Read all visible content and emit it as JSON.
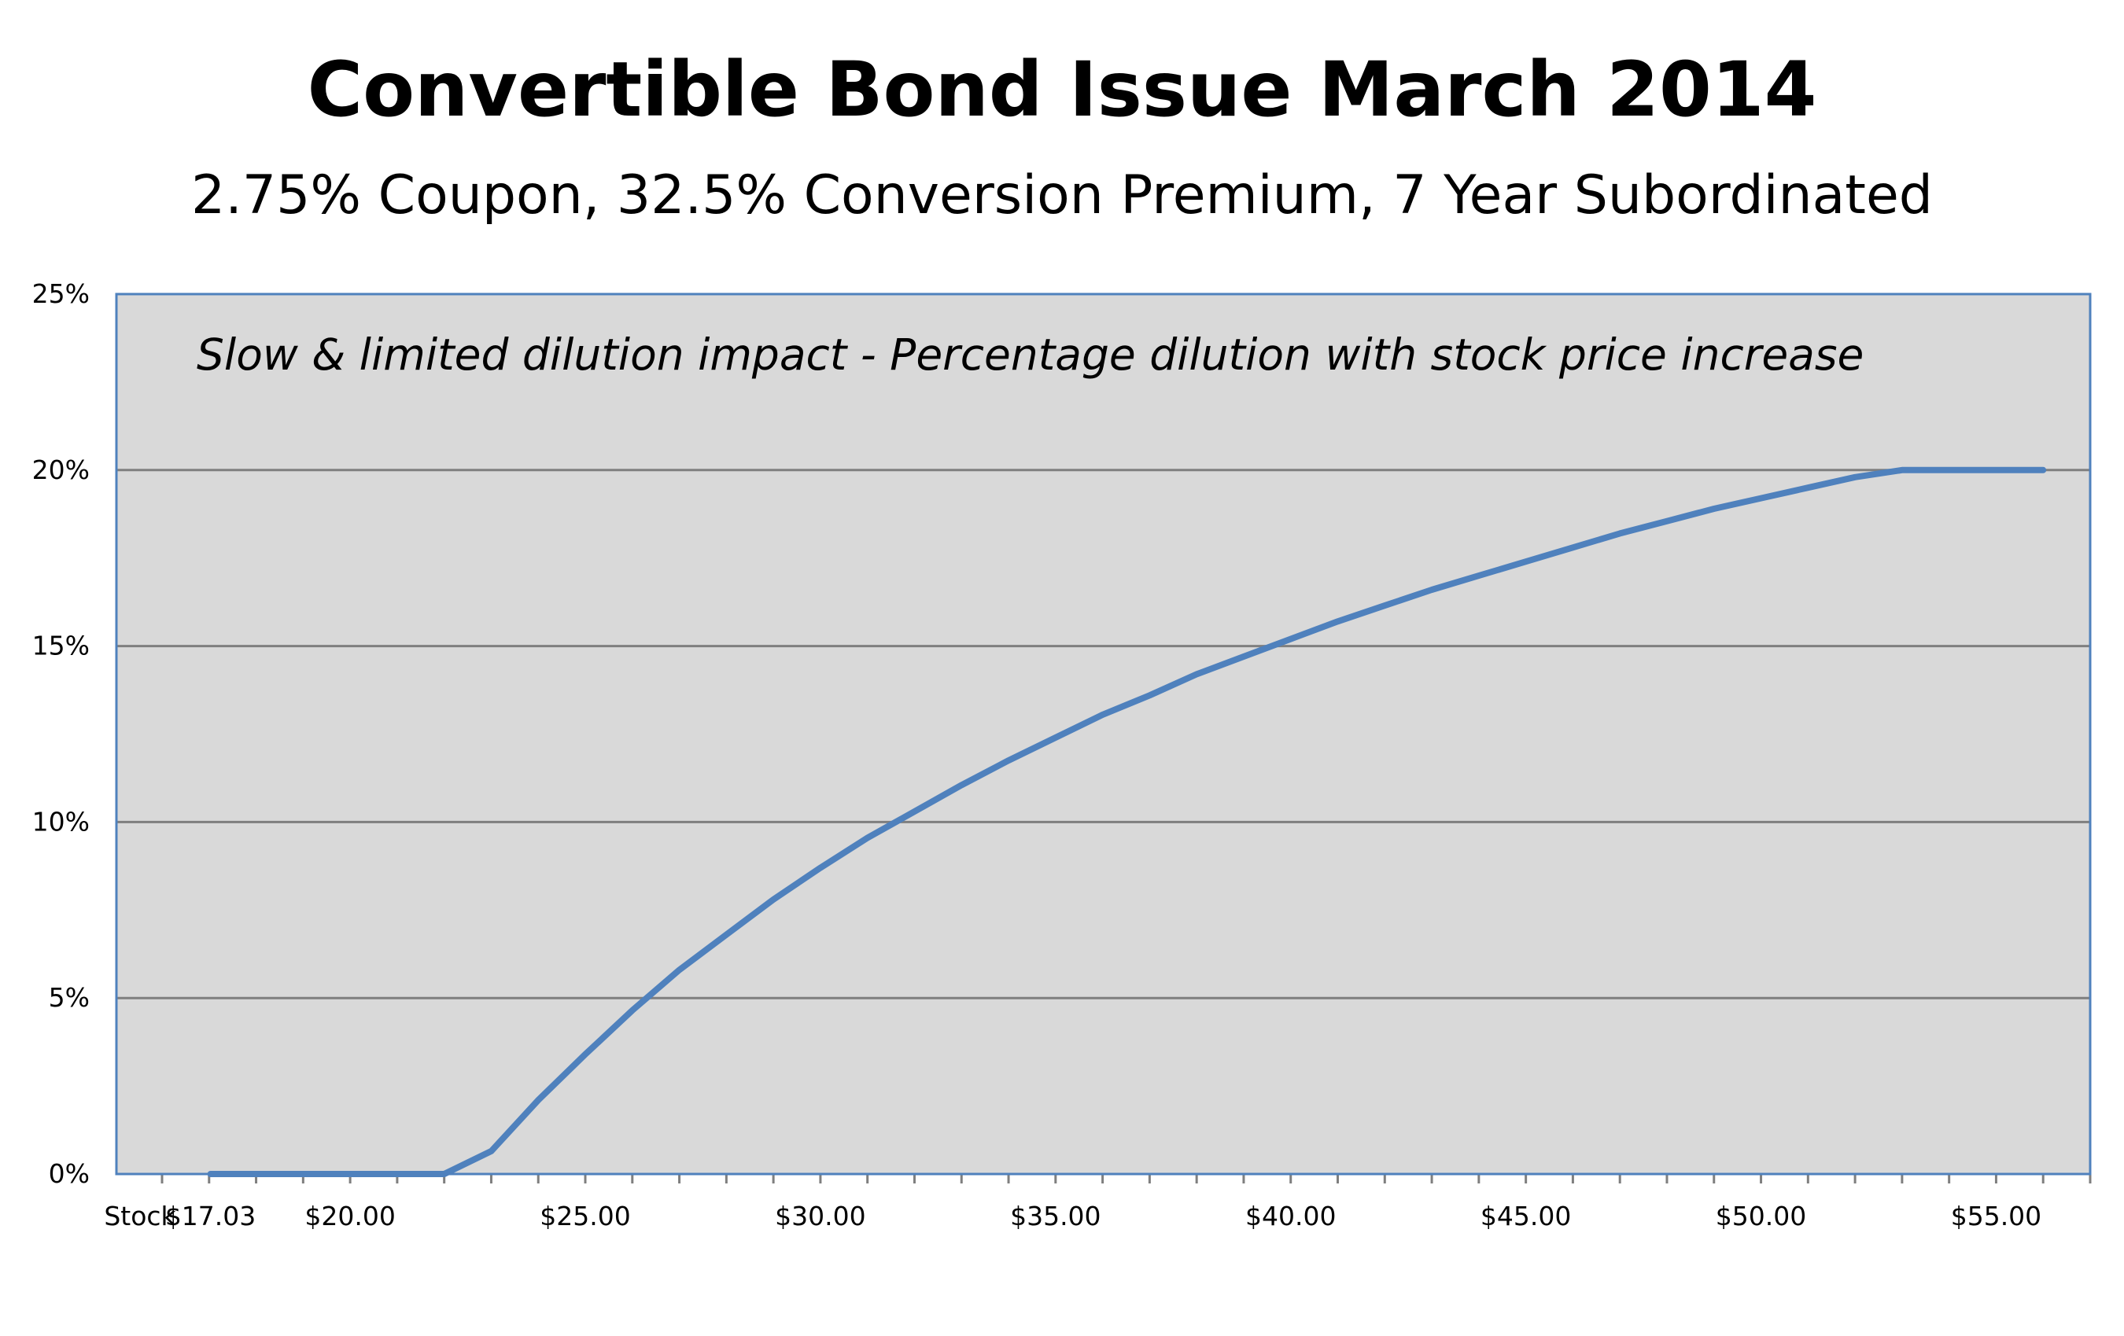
{
  "chart_data": {
    "type": "line",
    "title": "Convertible Bond Issue March 2014",
    "subtitle": "2.75% Coupon, 32.5% Conversion Premium,  7 Year Subordinated",
    "annotation": "Slow & limited dilution impact - Percentage dilution with stock price increase",
    "xlabel": "",
    "ylabel": "",
    "x_axis_prefix_label": "Stock",
    "x_tick_labels": [
      {
        "x": 17.03,
        "label": "$17.03"
      },
      {
        "x": 20,
        "label": "$20.00"
      },
      {
        "x": 25,
        "label": "$25.00"
      },
      {
        "x": 30,
        "label": "$30.00"
      },
      {
        "x": 35,
        "label": "$35.00"
      },
      {
        "x": 40,
        "label": "$40.00"
      },
      {
        "x": 45,
        "label": "$45.00"
      },
      {
        "x": 50,
        "label": "$50.00"
      },
      {
        "x": 55,
        "label": "$55.00"
      }
    ],
    "y_tick_labels": [
      {
        "y": 0,
        "label": "0%"
      },
      {
        "y": 5,
        "label": "5%"
      },
      {
        "y": 10,
        "label": "10%"
      },
      {
        "y": 15,
        "label": "15%"
      },
      {
        "y": 20,
        "label": "20%"
      },
      {
        "y": 25,
        "label": "25%"
      }
    ],
    "xlim": [
      15.03,
      57
    ],
    "ylim": [
      0,
      25
    ],
    "grid": "horizontal",
    "legend": "none",
    "series": [
      {
        "color": "#4f81bd",
        "x": [
          17.03,
          18,
          19,
          20,
          21,
          22,
          23,
          24,
          25,
          26,
          27,
          28,
          29,
          30,
          31,
          32,
          33,
          34,
          35,
          36,
          37,
          38,
          39,
          40,
          41,
          42,
          43,
          44,
          45,
          46,
          47,
          48,
          49,
          50,
          51,
          52,
          53,
          54,
          55,
          56
        ],
        "y": [
          0,
          0,
          0,
          0,
          0,
          0,
          0.65,
          2.1,
          3.4,
          4.65,
          5.8,
          6.8,
          7.8,
          8.7,
          9.55,
          10.3,
          11.05,
          11.75,
          12.4,
          13.05,
          13.6,
          14.2,
          14.7,
          15.2,
          15.7,
          16.15,
          16.6,
          17.0,
          17.4,
          17.8,
          18.2,
          18.55,
          18.9,
          19.2,
          19.5,
          19.8,
          20,
          20,
          20,
          20
        ]
      }
    ]
  },
  "colors": {
    "plot_background": "#d9d9d9",
    "plot_border": "#4f81bd",
    "gridline": "#7f7f7f",
    "line": "#4f81bd"
  }
}
